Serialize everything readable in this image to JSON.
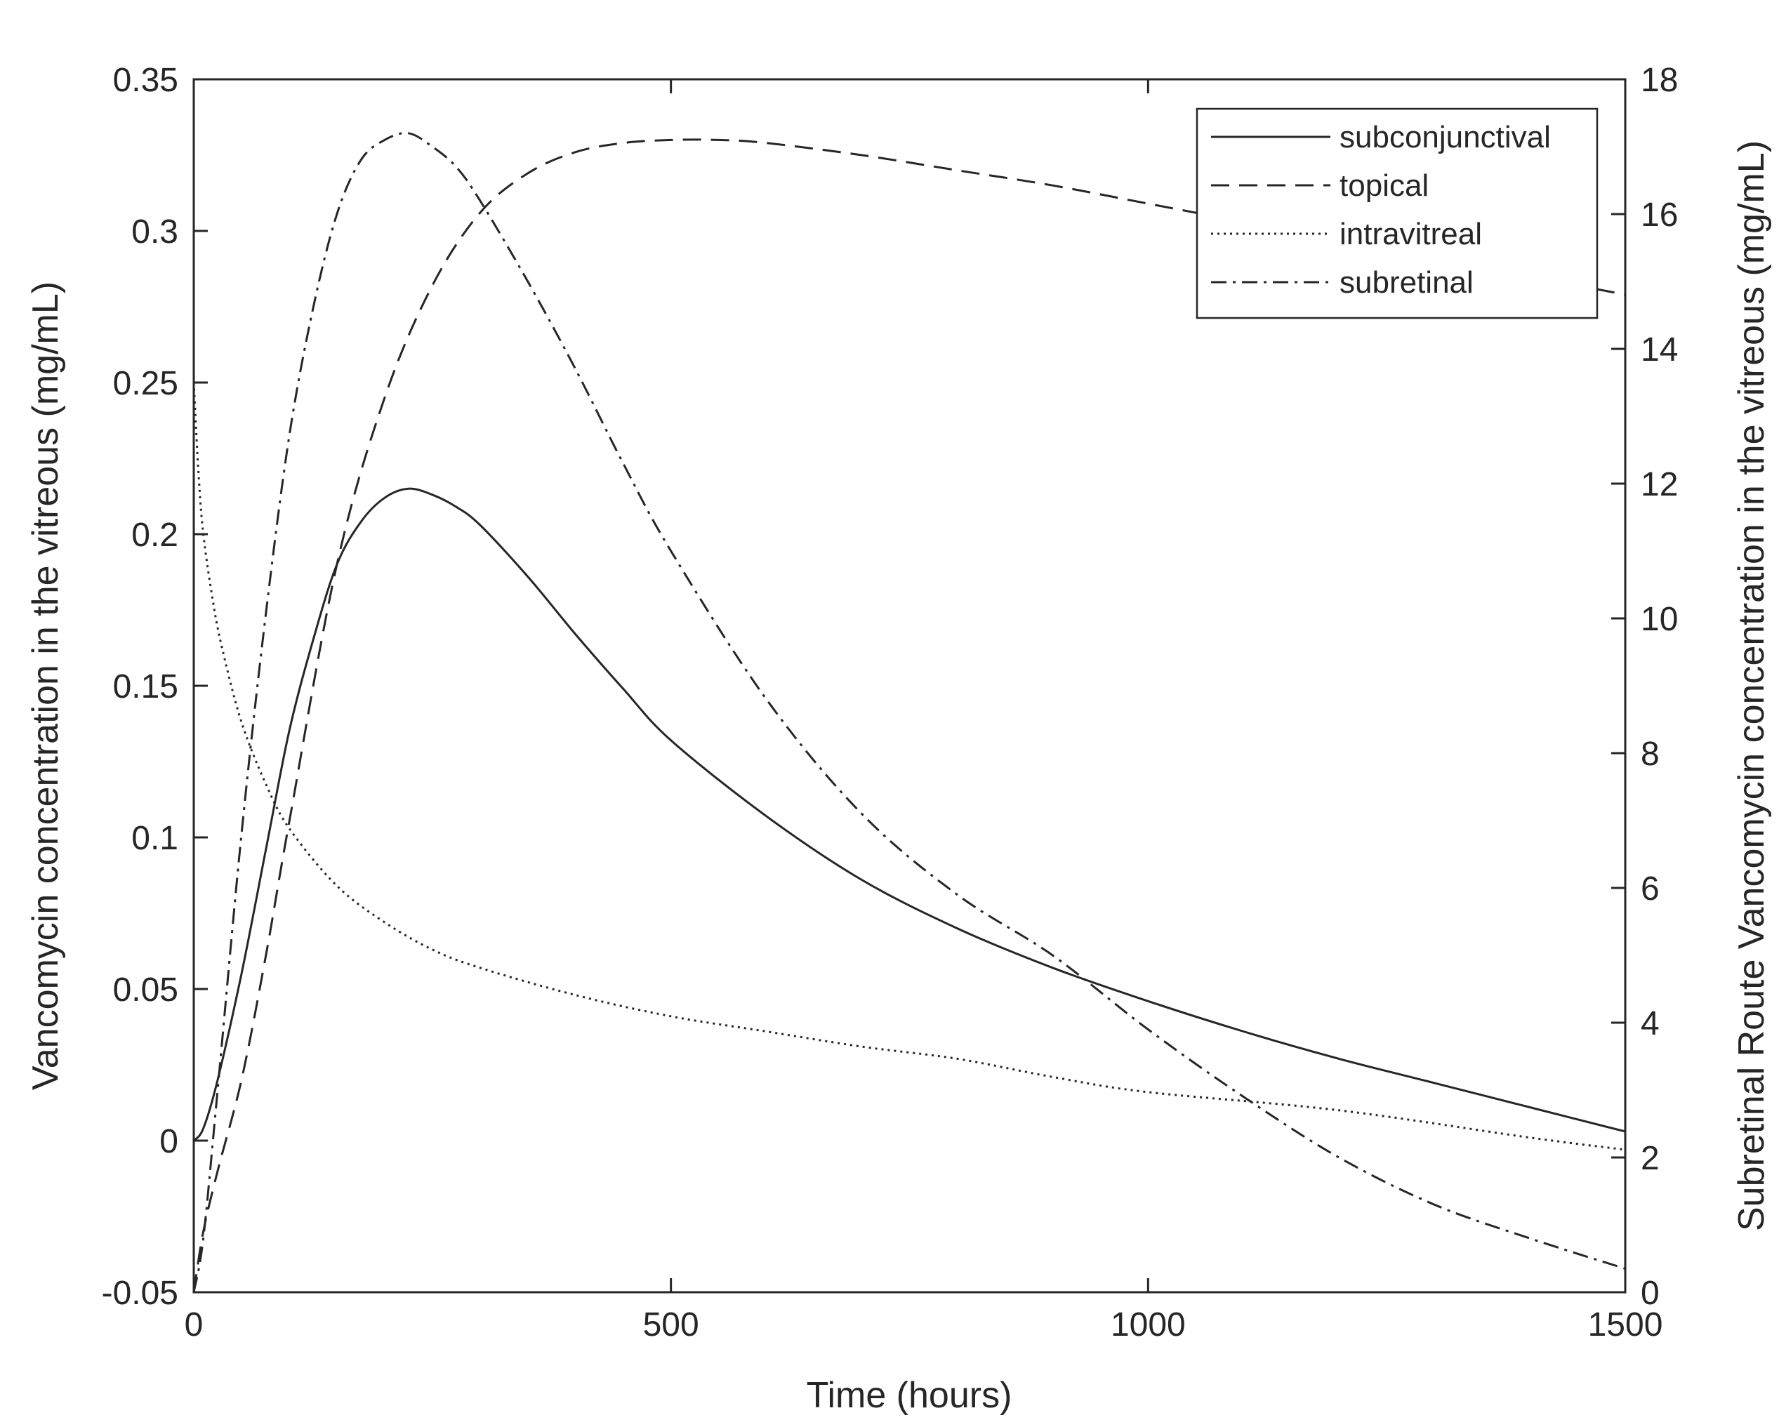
{
  "chart_data": {
    "type": "line",
    "title": "",
    "xlabel": "Time (hours)",
    "ylabel": "Vancomycin concentration in the vitreous (mg/mL)",
    "y2label": "Subretinal Route Vancomycin concentration in the vitreous (mg/mL)",
    "xlim": [
      0,
      1500
    ],
    "ylim": [
      -0.05,
      0.35
    ],
    "y2lim": [
      0,
      18
    ],
    "xticks": [
      "0",
      "500",
      "1000",
      "1500"
    ],
    "yticks": [
      "-0.05",
      "0",
      "0.05",
      "0.1",
      "0.15",
      "0.2",
      "0.25",
      "0.3",
      "0.35"
    ],
    "y2ticks": [
      "0",
      "2",
      "4",
      "6",
      "8",
      "10",
      "12",
      "14",
      "16",
      "18"
    ],
    "grid": false,
    "legend_position": "top-right",
    "series": [
      {
        "name": "subconjunctival",
        "style": "solid",
        "axis": "left",
        "x": [
          0,
          10,
          25,
          50,
          75,
          100,
          125,
          150,
          175,
          200,
          225,
          250,
          275,
          300,
          350,
          400,
          450,
          500,
          600,
          700,
          800,
          900,
          1000,
          1100,
          1200,
          1300,
          1400,
          1500
        ],
        "y": [
          0,
          0.004,
          0.02,
          0.055,
          0.095,
          0.135,
          0.165,
          0.19,
          0.204,
          0.212,
          0.215,
          0.213,
          0.209,
          0.203,
          0.186,
          0.167,
          0.149,
          0.132,
          0.107,
          0.086,
          0.07,
          0.057,
          0.046,
          0.036,
          0.027,
          0.019,
          0.011,
          0.003
        ]
      },
      {
        "name": "topical",
        "style": "dashed",
        "axis": "left",
        "x": [
          0,
          10,
          25,
          50,
          75,
          100,
          150,
          200,
          250,
          300,
          350,
          400,
          450,
          500,
          550,
          600,
          700,
          800,
          900,
          1000,
          1100,
          1200,
          1300,
          1400,
          1500
        ],
        "y": [
          -0.05,
          -0.03,
          -0.01,
          0.02,
          0.06,
          0.105,
          0.19,
          0.245,
          0.282,
          0.306,
          0.319,
          0.326,
          0.329,
          0.33,
          0.33,
          0.329,
          0.325,
          0.32,
          0.315,
          0.309,
          0.303,
          0.297,
          0.291,
          0.285,
          0.279
        ]
      },
      {
        "name": "intravitreal",
        "style": "dotted",
        "axis": "left",
        "x": [
          0,
          5,
          10,
          20,
          30,
          50,
          75,
          100,
          150,
          200,
          250,
          300,
          400,
          500,
          600,
          700,
          800,
          900,
          1000,
          1200,
          1400,
          1500
        ],
        "y": [
          0.25,
          0.22,
          0.2,
          0.178,
          0.162,
          0.138,
          0.118,
          0.103,
          0.084,
          0.072,
          0.063,
          0.057,
          0.048,
          0.041,
          0.036,
          0.031,
          0.027,
          0.021,
          0.016,
          0.01,
          0.001,
          -0.003
        ]
      },
      {
        "name": "subretinal",
        "style": "dashdot",
        "axis": "right",
        "x": [
          0,
          10,
          25,
          50,
          75,
          100,
          125,
          150,
          175,
          200,
          225,
          250,
          275,
          300,
          350,
          400,
          450,
          500,
          600,
          700,
          800,
          900,
          1000,
          1100,
          1200,
          1300,
          1400,
          1500
        ],
        "y": [
          0,
          0.8,
          3.0,
          6.8,
          10.0,
          12.7,
          14.6,
          16.0,
          16.8,
          17.1,
          17.2,
          17.0,
          16.7,
          16.2,
          15.0,
          13.7,
          12.3,
          11.0,
          8.8,
          7.1,
          5.9,
          5.0,
          3.9,
          2.9,
          2.0,
          1.3,
          0.8,
          0.35
        ]
      }
    ]
  }
}
